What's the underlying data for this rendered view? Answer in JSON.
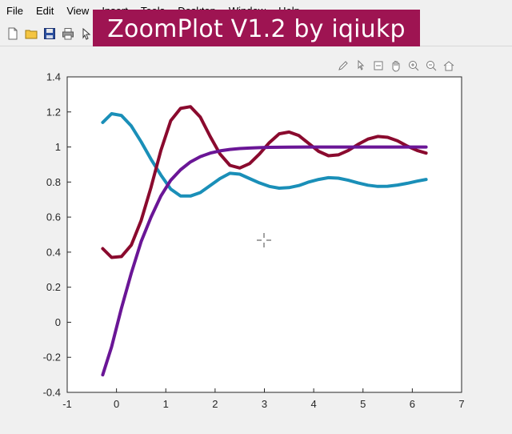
{
  "window": {
    "menu": [
      "File",
      "Edit",
      "View",
      "Insert",
      "Tools",
      "Desktop",
      "Window",
      "Help"
    ]
  },
  "toolbar": {
    "icons": [
      "new-file-icon",
      "open-folder-icon",
      "save-icon",
      "print-icon",
      "arrow-icon"
    ]
  },
  "banner": {
    "text": "ZoomPlot V1.2 by iqiukp"
  },
  "axes_toolbar": {
    "icons": [
      "brush-icon",
      "data-cursor-icon",
      "rotate-icon",
      "pan-icon",
      "zoom-in-icon",
      "zoom-out-icon",
      "home-icon"
    ]
  },
  "colors": {
    "cyan": "#1a8fb8",
    "maroon": "#8a0a2e",
    "purple": "#6a1696",
    "banner": "#9e1452"
  },
  "chart_data": {
    "type": "line",
    "title": "",
    "xlabel": "",
    "ylabel": "",
    "xlim": [
      -1,
      7
    ],
    "ylim": [
      -0.4,
      1.4
    ],
    "xticks": [
      "-1",
      "0",
      "1",
      "2",
      "3",
      "4",
      "5",
      "6",
      "7"
    ],
    "yticks": [
      "-0.4",
      "-0.2",
      "0",
      "0.2",
      "0.4",
      "0.6",
      "0.8",
      "1",
      "1.2",
      "1.4"
    ],
    "grid": false,
    "series": [
      {
        "color": "#1a8fb8",
        "x": [
          -0.28,
          -0.1,
          0.1,
          0.3,
          0.5,
          0.7,
          0.9,
          1.1,
          1.3,
          1.5,
          1.7,
          1.9,
          2.1,
          2.3,
          2.5,
          2.7,
          2.9,
          3.1,
          3.3,
          3.5,
          3.7,
          3.9,
          4.1,
          4.3,
          4.5,
          4.7,
          4.9,
          5.1,
          5.3,
          5.5,
          5.7,
          5.9,
          6.1,
          6.28
        ],
        "y": [
          1.14,
          1.19,
          1.18,
          1.12,
          1.03,
          0.93,
          0.84,
          0.76,
          0.72,
          0.72,
          0.74,
          0.78,
          0.82,
          0.85,
          0.845,
          0.82,
          0.795,
          0.775,
          0.765,
          0.768,
          0.78,
          0.8,
          0.815,
          0.825,
          0.822,
          0.81,
          0.795,
          0.782,
          0.775,
          0.776,
          0.783,
          0.793,
          0.805,
          0.815
        ]
      },
      {
        "color": "#8a0a2e",
        "x": [
          -0.28,
          -0.1,
          0.1,
          0.3,
          0.5,
          0.7,
          0.9,
          1.1,
          1.3,
          1.5,
          1.7,
          1.9,
          2.1,
          2.3,
          2.5,
          2.7,
          2.9,
          3.1,
          3.3,
          3.5,
          3.7,
          3.9,
          4.1,
          4.3,
          4.5,
          4.7,
          4.9,
          5.1,
          5.3,
          5.5,
          5.7,
          5.9,
          6.1,
          6.28
        ],
        "y": [
          0.42,
          0.37,
          0.375,
          0.44,
          0.58,
          0.77,
          0.98,
          1.15,
          1.22,
          1.23,
          1.17,
          1.06,
          0.96,
          0.895,
          0.88,
          0.905,
          0.96,
          1.025,
          1.075,
          1.085,
          1.065,
          1.02,
          0.975,
          0.95,
          0.955,
          0.98,
          1.015,
          1.045,
          1.06,
          1.055,
          1.035,
          1.005,
          0.98,
          0.965
        ]
      },
      {
        "color": "#6a1696",
        "x": [
          -0.28,
          -0.1,
          0.1,
          0.3,
          0.5,
          0.7,
          0.9,
          1.1,
          1.3,
          1.5,
          1.7,
          1.9,
          2.1,
          2.3,
          2.5,
          2.7,
          2.9,
          3.1,
          3.5,
          4.0,
          4.5,
          5.0,
          5.5,
          6.0,
          6.28
        ],
        "y": [
          -0.3,
          -0.14,
          0.08,
          0.28,
          0.46,
          0.6,
          0.72,
          0.81,
          0.87,
          0.915,
          0.945,
          0.965,
          0.978,
          0.986,
          0.991,
          0.994,
          0.996,
          0.998,
          0.999,
          1.0,
          1.0,
          1.0,
          1.0,
          1.0,
          1.0
        ]
      }
    ]
  }
}
